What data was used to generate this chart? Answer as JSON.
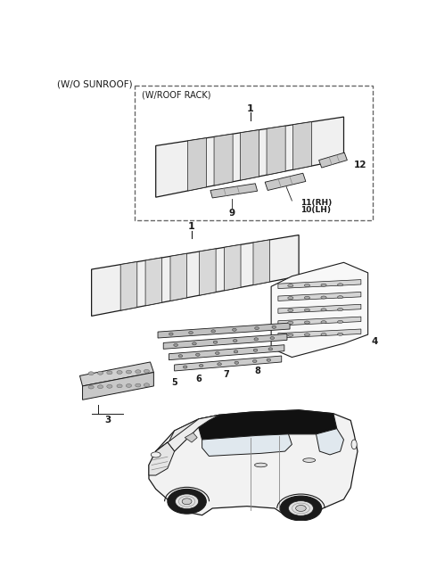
{
  "background_color": "#ffffff",
  "fig_width": 4.8,
  "fig_height": 6.56,
  "dpi": 100,
  "title_wo_sunroof": "(W/O SUNROOF)",
  "title_w_roof_rack": "(W/ROOF RACK)"
}
